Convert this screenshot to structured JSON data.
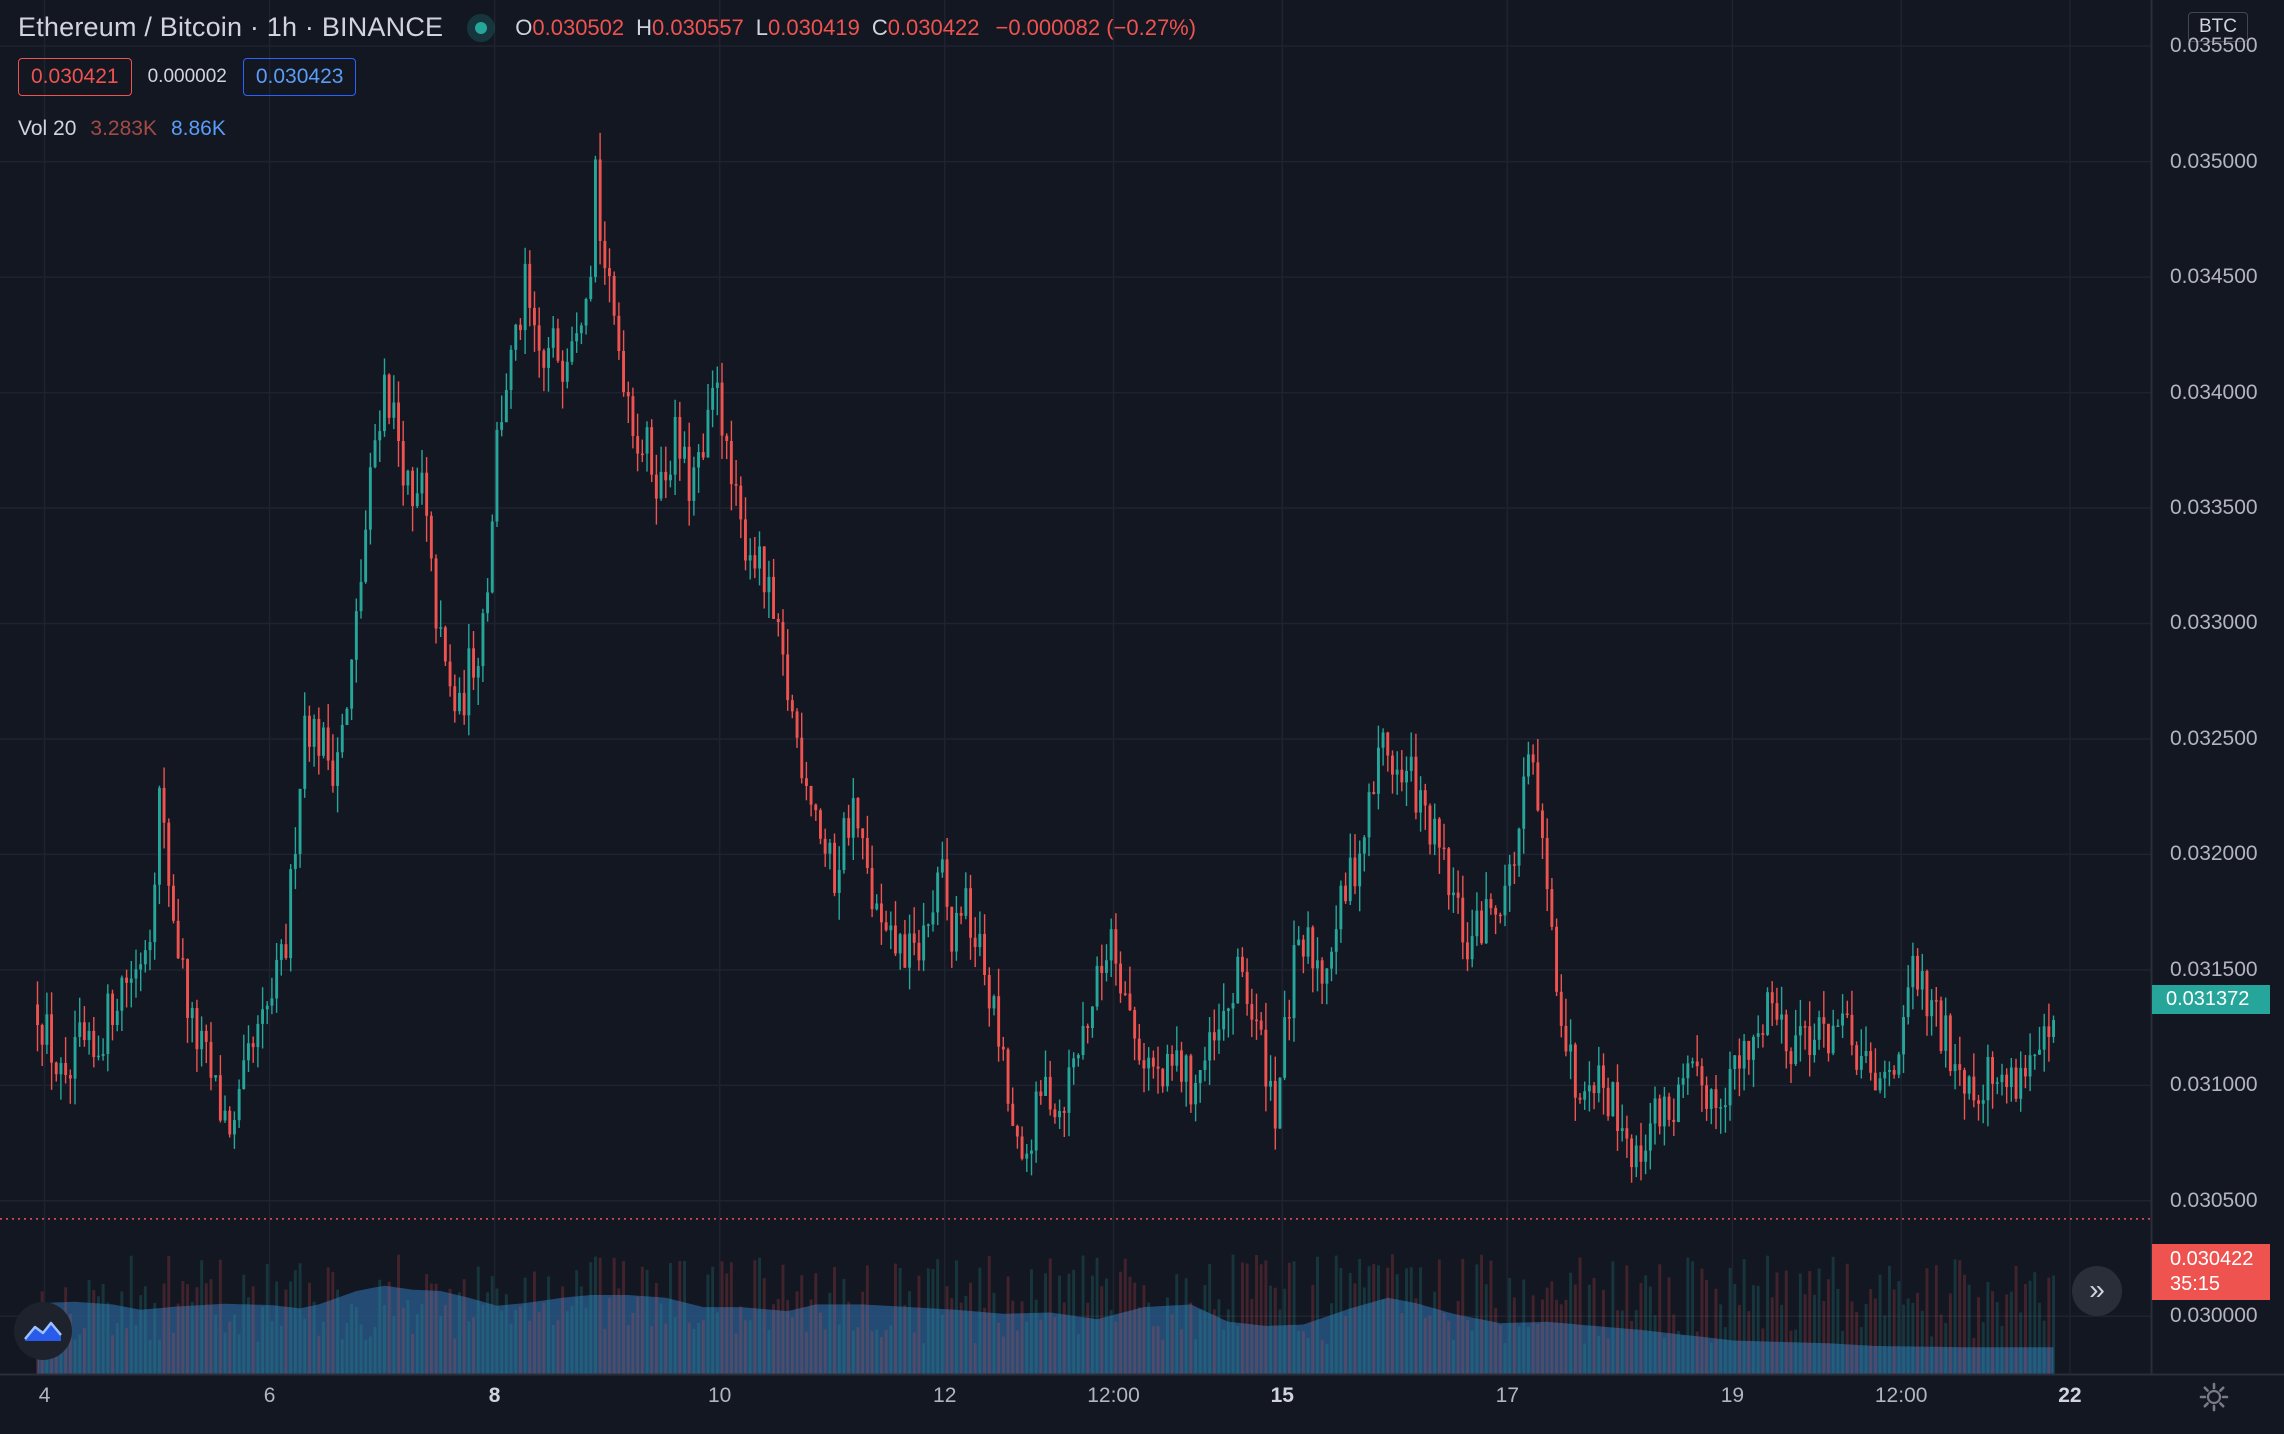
{
  "header": {
    "title": "Ethereum / Bitcoin · 1h · BINANCE",
    "ohlc": {
      "o_label": "O",
      "o": "0.030502",
      "h_label": "H",
      "h": "0.030557",
      "l_label": "L",
      "l": "0.030419",
      "c_label": "C",
      "c": "0.030422",
      "change": "−0.000082 (−0.27%)"
    },
    "bid": "0.030421",
    "spread": "0.000002",
    "ask": "0.030423",
    "volume": {
      "label": "Vol 20",
      "value": "3.283K",
      "ma": "8.86K"
    },
    "currency": "BTC"
  },
  "price_tags": {
    "highlight": "0.031372",
    "last_price": "0.030422",
    "countdown": "35:15"
  },
  "colors": {
    "up": "#26a69a",
    "down": "#ef5350",
    "background": "#131722",
    "volume_area": "#2a5d8f"
  },
  "icons": [
    "chart-logo-icon",
    "scroll-to-realtime-icon",
    "settings-gear-icon"
  ],
  "chart_data": {
    "type": "candlestick",
    "symbol": "ETH/BTC",
    "ylim": [
      0.02975,
      0.0357
    ],
    "y_ticks": [
      "0.035500",
      "0.035000",
      "0.034500",
      "0.034000",
      "0.033500",
      "0.033000",
      "0.032500",
      "0.032000",
      "0.031500",
      "0.031000",
      "0.030500",
      "0.030000"
    ],
    "x_ticks": [
      {
        "label": "4",
        "t": 1.5,
        "bold": false
      },
      {
        "label": "6",
        "t": 49.5,
        "bold": false
      },
      {
        "label": "8",
        "t": 97.5,
        "bold": true
      },
      {
        "label": "10",
        "t": 145.5,
        "bold": false
      },
      {
        "label": "12",
        "t": 193.5,
        "bold": false
      },
      {
        "label": "12:00",
        "t": 229.5,
        "bold": false
      },
      {
        "label": "15",
        "t": 265.5,
        "bold": true
      },
      {
        "label": "17",
        "t": 313.5,
        "bold": false
      },
      {
        "label": "19",
        "t": 361.5,
        "bold": false
      },
      {
        "label": "12:00",
        "t": 397.5,
        "bold": false
      },
      {
        "label": "22",
        "t": 433.5,
        "bold": true
      }
    ],
    "t_range": [
      -8,
      451
    ],
    "close_path": [
      [
        0,
        0.03135
      ],
      [
        3,
        0.03115
      ],
      [
        6,
        0.03095
      ],
      [
        9,
        0.03118
      ],
      [
        12,
        0.0311
      ],
      [
        15,
        0.0313
      ],
      [
        18,
        0.03145
      ],
      [
        21,
        0.0315
      ],
      [
        24,
        0.0317
      ],
      [
        26,
        0.03225
      ],
      [
        28,
        0.0319
      ],
      [
        30,
        0.0316
      ],
      [
        33,
        0.03125
      ],
      [
        36,
        0.0311
      ],
      [
        39,
        0.0309
      ],
      [
        42,
        0.0308
      ],
      [
        45,
        0.0311
      ],
      [
        48,
        0.03125
      ],
      [
        51,
        0.03145
      ],
      [
        53,
        0.0316
      ],
      [
        55,
        0.0321
      ],
      [
        57,
        0.0326
      ],
      [
        60,
        0.0325
      ],
      [
        63,
        0.0324
      ],
      [
        66,
        0.0326
      ],
      [
        68,
        0.033
      ],
      [
        70,
        0.0334
      ],
      [
        72,
        0.0338
      ],
      [
        74,
        0.03405
      ],
      [
        76,
        0.0339
      ],
      [
        78,
        0.0337
      ],
      [
        80,
        0.03345
      ],
      [
        82,
        0.0336
      ],
      [
        84,
        0.0332
      ],
      [
        86,
        0.0329
      ],
      [
        88,
        0.0327
      ],
      [
        90,
        0.0326
      ],
      [
        92,
        0.0328
      ],
      [
        94,
        0.0329
      ],
      [
        96,
        0.0332
      ],
      [
        98,
        0.0338
      ],
      [
        100,
        0.03405
      ],
      [
        102,
        0.0342
      ],
      [
        104,
        0.03445
      ],
      [
        106,
        0.0342
      ],
      [
        108,
        0.0341
      ],
      [
        110,
        0.0342
      ],
      [
        112,
        0.03415
      ],
      [
        114,
        0.0343
      ],
      [
        116,
        0.0344
      ],
      [
        118,
        0.0346
      ],
      [
        119,
        0.035
      ],
      [
        120,
        0.0347
      ],
      [
        122,
        0.0344
      ],
      [
        124,
        0.0342
      ],
      [
        126,
        0.034
      ],
      [
        128,
        0.0338
      ],
      [
        130,
        0.03375
      ],
      [
        133,
        0.0336
      ],
      [
        136,
        0.0338
      ],
      [
        139,
        0.0336
      ],
      [
        142,
        0.0337
      ],
      [
        145,
        0.0341
      ],
      [
        147,
        0.0337
      ],
      [
        150,
        0.0334
      ],
      [
        153,
        0.0333
      ],
      [
        156,
        0.0331
      ],
      [
        158,
        0.0329
      ],
      [
        160,
        0.0327
      ],
      [
        162,
        0.0325
      ],
      [
        164,
        0.03235
      ],
      [
        166,
        0.0322
      ],
      [
        168,
        0.032
      ],
      [
        170,
        0.0319
      ],
      [
        172,
        0.0321
      ],
      [
        174,
        0.0322
      ],
      [
        176,
        0.032
      ],
      [
        178,
        0.0318
      ],
      [
        181,
        0.0316
      ],
      [
        184,
        0.0316
      ],
      [
        187,
        0.03155
      ],
      [
        190,
        0.0317
      ],
      [
        193,
        0.0319
      ],
      [
        195,
        0.0316
      ],
      [
        197,
        0.0318
      ],
      [
        199,
        0.0317
      ],
      [
        202,
        0.0315
      ],
      [
        205,
        0.0312
      ],
      [
        208,
        0.0308
      ],
      [
        210,
        0.0306
      ],
      [
        212,
        0.0308
      ],
      [
        215,
        0.031
      ],
      [
        218,
        0.0309
      ],
      [
        221,
        0.0311
      ],
      [
        224,
        0.0313
      ],
      [
        227,
        0.0315
      ],
      [
        229,
        0.0317
      ],
      [
        231,
        0.0315
      ],
      [
        234,
        0.0312
      ],
      [
        237,
        0.0311
      ],
      [
        240,
        0.031
      ],
      [
        243,
        0.0311
      ],
      [
        246,
        0.031
      ],
      [
        249,
        0.0311
      ],
      [
        252,
        0.0312
      ],
      [
        255,
        0.0314
      ],
      [
        257,
        0.0315
      ],
      [
        259,
        0.0313
      ],
      [
        262,
        0.0311
      ],
      [
        264,
        0.0309
      ],
      [
        266,
        0.0312
      ],
      [
        268,
        0.0315
      ],
      [
        271,
        0.0316
      ],
      [
        274,
        0.0315
      ],
      [
        277,
        0.0317
      ],
      [
        280,
        0.0319
      ],
      [
        283,
        0.0321
      ],
      [
        285,
        0.0323
      ],
      [
        287,
        0.0325
      ],
      [
        289,
        0.0324
      ],
      [
        291,
        0.0323
      ],
      [
        293,
        0.03235
      ],
      [
        295,
        0.0322
      ],
      [
        297,
        0.0321
      ],
      [
        299,
        0.032
      ],
      [
        302,
        0.0318
      ],
      [
        305,
        0.0316
      ],
      [
        308,
        0.0317
      ],
      [
        311,
        0.0318
      ],
      [
        314,
        0.0319
      ],
      [
        316,
        0.0321
      ],
      [
        318,
        0.0324
      ],
      [
        320,
        0.0322
      ],
      [
        322,
        0.0318
      ],
      [
        324,
        0.0315
      ],
      [
        326,
        0.0312
      ],
      [
        328,
        0.031
      ],
      [
        331,
        0.0311
      ],
      [
        334,
        0.031
      ],
      [
        337,
        0.0309
      ],
      [
        339,
        0.0308
      ],
      [
        341,
        0.03065
      ],
      [
        343,
        0.0308
      ],
      [
        346,
        0.0309
      ],
      [
        349,
        0.0309
      ],
      [
        352,
        0.031
      ],
      [
        355,
        0.031
      ],
      [
        358,
        0.03095
      ],
      [
        361,
        0.03105
      ],
      [
        364,
        0.0311
      ],
      [
        367,
        0.0312
      ],
      [
        369,
        0.0314
      ],
      [
        371,
        0.0313
      ],
      [
        374,
        0.0312
      ],
      [
        377,
        0.03125
      ],
      [
        380,
        0.0312
      ],
      [
        383,
        0.03125
      ],
      [
        386,
        0.0312
      ],
      [
        389,
        0.0311
      ],
      [
        392,
        0.03095
      ],
      [
        395,
        0.0311
      ],
      [
        398,
        0.0312
      ],
      [
        400,
        0.0315
      ],
      [
        402,
        0.0314
      ],
      [
        404,
        0.0313
      ],
      [
        407,
        0.0312
      ],
      [
        410,
        0.0311
      ],
      [
        413,
        0.031
      ],
      [
        416,
        0.03105
      ],
      [
        419,
        0.031
      ],
      [
        422,
        0.03105
      ],
      [
        425,
        0.0311
      ],
      [
        428,
        0.03115
      ],
      [
        430,
        0.0312
      ]
    ],
    "volume_area_path": [
      [
        0,
        0.38
      ],
      [
        8,
        0.39
      ],
      [
        16,
        0.37
      ],
      [
        22,
        0.33
      ],
      [
        30,
        0.355
      ],
      [
        40,
        0.375
      ],
      [
        50,
        0.365
      ],
      [
        56,
        0.34
      ],
      [
        60,
        0.37
      ],
      [
        68,
        0.47
      ],
      [
        74,
        0.51
      ],
      [
        80,
        0.48
      ],
      [
        86,
        0.47
      ],
      [
        92,
        0.42
      ],
      [
        98,
        0.36
      ],
      [
        104,
        0.38
      ],
      [
        112,
        0.42
      ],
      [
        118,
        0.44
      ],
      [
        126,
        0.44
      ],
      [
        134,
        0.42
      ],
      [
        142,
        0.35
      ],
      [
        150,
        0.35
      ],
      [
        160,
        0.32
      ],
      [
        166,
        0.37
      ],
      [
        176,
        0.37
      ],
      [
        186,
        0.35
      ],
      [
        196,
        0.33
      ],
      [
        206,
        0.3
      ],
      [
        216,
        0.31
      ],
      [
        226,
        0.26
      ],
      [
        236,
        0.35
      ],
      [
        246,
        0.37
      ],
      [
        254,
        0.24
      ],
      [
        262,
        0.21
      ],
      [
        270,
        0.22
      ],
      [
        280,
        0.34
      ],
      [
        288,
        0.42
      ],
      [
        294,
        0.38
      ],
      [
        302,
        0.3
      ],
      [
        312,
        0.23
      ],
      [
        322,
        0.24
      ],
      [
        332,
        0.21
      ],
      [
        342,
        0.18
      ],
      [
        352,
        0.14
      ],
      [
        362,
        0.1
      ],
      [
        372,
        0.09
      ],
      [
        382,
        0.08
      ],
      [
        392,
        0.06
      ],
      [
        402,
        0.055
      ],
      [
        412,
        0.05
      ],
      [
        422,
        0.05
      ],
      [
        430,
        0.05
      ]
    ]
  }
}
